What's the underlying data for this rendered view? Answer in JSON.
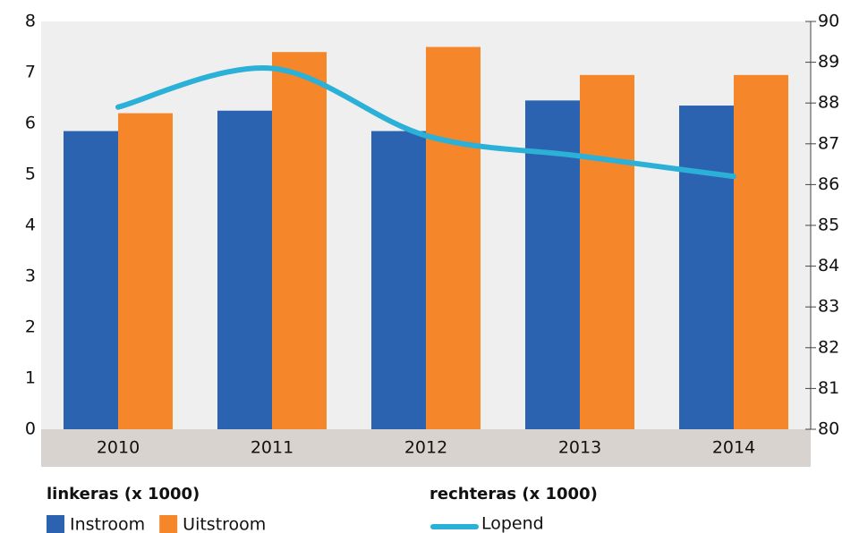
{
  "chart_data": {
    "type": "bar",
    "categories": [
      "2010",
      "2011",
      "2012",
      "2013",
      "2014"
    ],
    "series": [
      {
        "name": "Instroom",
        "color": "#2b63b0",
        "type": "bar",
        "values": [
          5.85,
          6.25,
          5.85,
          6.45,
          6.35
        ]
      },
      {
        "name": "Uitstroom",
        "color": "#f5862a",
        "type": "bar",
        "values": [
          6.2,
          7.4,
          7.5,
          6.95,
          6.95
        ]
      },
      {
        "name": "Lopend",
        "color": "#2bb0d8",
        "type": "line",
        "axis": "y2",
        "values": [
          87.9,
          88.85,
          87.2,
          86.7,
          86.2
        ]
      }
    ],
    "ylim": [
      0,
      8
    ],
    "yticks": [
      0,
      1,
      2,
      3,
      4,
      5,
      6,
      7,
      8
    ],
    "y2lim": [
      80,
      90
    ],
    "y2ticks": [
      80,
      81,
      82,
      83,
      84,
      85,
      86,
      87,
      88,
      89,
      90
    ],
    "y_legend_title": "linkeras (x 1000)",
    "y2_legend_title": "rechteras (x 1000)",
    "grid": false
  }
}
